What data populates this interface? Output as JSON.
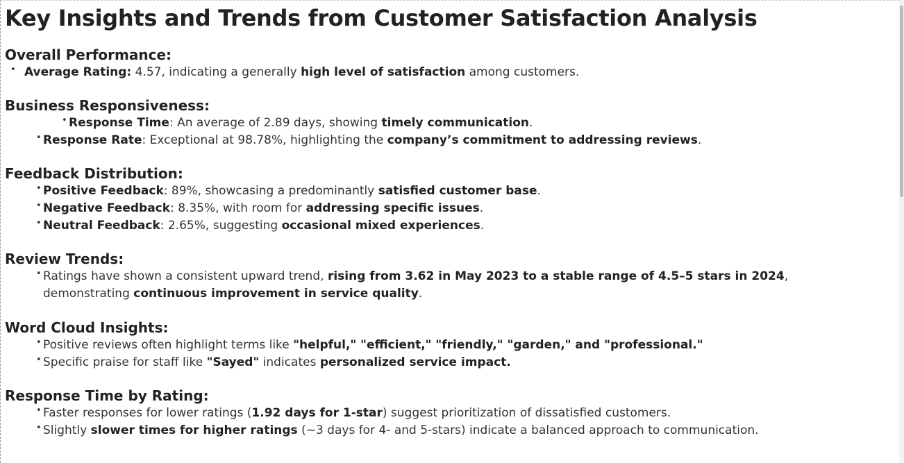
{
  "title": "Key Insights and Trends from Customer Satisfaction Analysis",
  "bullet_glyph": "•",
  "sections": [
    {
      "heading": "Overall Performance:",
      "items": [
        {
          "parts": [
            {
              "t": "Average Rating:",
              "b": true
            },
            {
              "t": " 4.57, indicating a generally ",
              "b": false
            },
            {
              "t": "high level of satisfaction",
              "b": true
            },
            {
              "t": " among customers.",
              "b": false
            }
          ]
        }
      ]
    },
    {
      "heading": "Business Responsiveness:",
      "items": [
        {
          "parts": [
            {
              "t": "Response Time",
              "b": true
            },
            {
              "t": ": An average of 2.89 days, showing ",
              "b": false
            },
            {
              "t": "timely communication",
              "b": true
            },
            {
              "t": ".",
              "b": false
            }
          ]
        },
        {
          "parts": [
            {
              "t": "Response Rate",
              "b": true
            },
            {
              "t": ": Exceptional at 98.78%, highlighting the ",
              "b": false
            },
            {
              "t": "company’s commitment to addressing reviews",
              "b": true
            },
            {
              "t": ".",
              "b": false
            }
          ]
        }
      ]
    },
    {
      "heading": "Feedback Distribution:",
      "items": [
        {
          "parts": [
            {
              "t": "Positive Feedback",
              "b": true
            },
            {
              "t": ": 89%, showcasing a predominantly ",
              "b": false
            },
            {
              "t": "satisfied customer base",
              "b": true
            },
            {
              "t": ".",
              "b": false
            }
          ]
        },
        {
          "parts": [
            {
              "t": "Negative Feedback",
              "b": true
            },
            {
              "t": ": 8.35%, with room for ",
              "b": false
            },
            {
              "t": "addressing specific issues",
              "b": true
            },
            {
              "t": ".",
              "b": false
            }
          ]
        },
        {
          "parts": [
            {
              "t": "Neutral Feedback",
              "b": true
            },
            {
              "t": ": 2.65%, suggesting ",
              "b": false
            },
            {
              "t": "occasional mixed experiences",
              "b": true
            },
            {
              "t": ".",
              "b": false
            }
          ]
        }
      ]
    },
    {
      "heading": "Review Trends:",
      "items": [
        {
          "parts": [
            {
              "t": "Ratings have shown a consistent upward trend, ",
              "b": false
            },
            {
              "t": "rising from 3.62 in May 2023 to a stable range of 4.5–5 stars in 2024",
              "b": true
            },
            {
              "t": ", demonstrating ",
              "b": false
            },
            {
              "t": "continuous improvement in service quality",
              "b": true
            },
            {
              "t": ".",
              "b": false
            }
          ]
        }
      ]
    },
    {
      "heading": "Word Cloud Insights:",
      "items": [
        {
          "parts": [
            {
              "t": "Positive reviews often highlight terms like ",
              "b": false
            },
            {
              "t": "\"helpful,\" \"efficient,\" \"friendly,\" \"garden,\" and \"professional.\"",
              "b": true
            }
          ]
        },
        {
          "parts": [
            {
              "t": "Specific praise for staff like ",
              "b": false
            },
            {
              "t": "\"Sayed\"",
              "b": true
            },
            {
              "t": " indicates ",
              "b": false
            },
            {
              "t": "personalized service impact.",
              "b": true
            }
          ]
        }
      ]
    },
    {
      "heading": "Response Time by Rating:",
      "items": [
        {
          "parts": [
            {
              "t": "Faster responses for lower ratings (",
              "b": false
            },
            {
              "t": "1.92 days for 1-star",
              "b": true
            },
            {
              "t": ") suggest prioritization of dissatisfied customers.",
              "b": false
            }
          ]
        },
        {
          "parts": [
            {
              "t": "Slightly ",
              "b": false
            },
            {
              "t": "slower times for higher ratings",
              "b": true
            },
            {
              "t": " (~3 days for 4- and 5-stars) indicate a balanced approach to communication.",
              "b": false
            }
          ]
        }
      ]
    }
  ]
}
